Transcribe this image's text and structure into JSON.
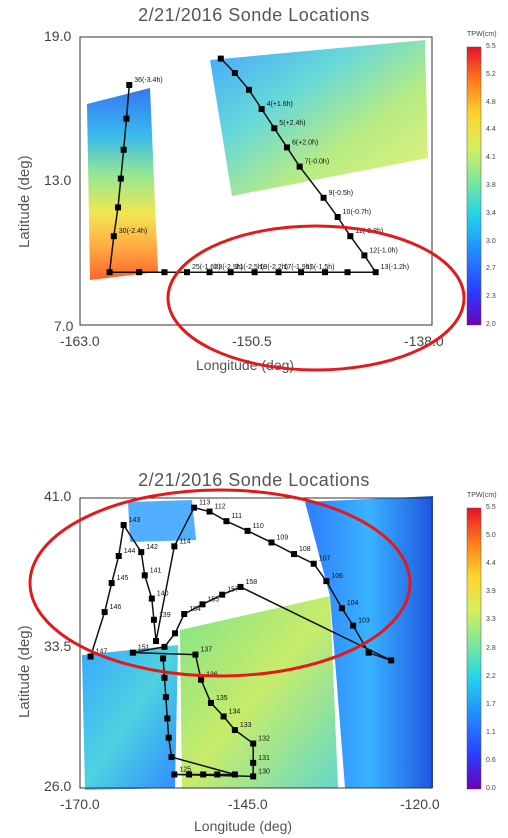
{
  "chart_data": [
    {
      "type": "scatter",
      "title": "2/21/2016 Sonde Locations",
      "xlabel": "Longitude (deg)",
      "ylabel": "Latitude (deg)",
      "xlim": [
        -163.0,
        -138.0
      ],
      "ylim": [
        7.0,
        19.0
      ],
      "xticks": [
        "-163.0",
        "-150.5",
        "-138.0"
      ],
      "yticks": [
        "7.0",
        "13.0",
        "19.0"
      ],
      "colorbar": {
        "title": "TPW(cm)",
        "ticks": [
          "5.5",
          "5.2",
          "4.8",
          "4.4",
          "4.1",
          "3.8",
          "3.4",
          "3.0",
          "2.7",
          "2.3",
          "2.0"
        ]
      },
      "sonde_points": [
        {
          "label": "36(-3.4h)",
          "lon": -159.5,
          "lat": 17.0
        },
        {
          "label": "",
          "lon": -159.7,
          "lat": 15.6
        },
        {
          "label": "",
          "lon": -159.9,
          "lat": 14.3
        },
        {
          "label": "",
          "lon": -160.1,
          "lat": 13.1
        },
        {
          "label": "",
          "lon": -160.3,
          "lat": 11.9
        },
        {
          "label": "30(-2.4h)",
          "lon": -160.6,
          "lat": 10.7
        },
        {
          "label": "",
          "lon": -160.9,
          "lat": 9.2
        },
        {
          "label": "",
          "lon": -158.8,
          "lat": 9.2
        },
        {
          "label": "",
          "lon": -157.0,
          "lat": 9.2
        },
        {
          "label": "25(-1.6h)",
          "lon": -155.4,
          "lat": 9.2
        },
        {
          "label": "23(-2.9h)",
          "lon": -153.8,
          "lat": 9.2
        },
        {
          "label": "21(-2.5h)",
          "lon": -152.3,
          "lat": 9.2
        },
        {
          "label": "19(-2.2h)",
          "lon": -150.6,
          "lat": 9.2
        },
        {
          "label": "17(-1.9h)",
          "lon": -148.9,
          "lat": 9.2
        },
        {
          "label": "15(-1.5h)",
          "lon": -147.3,
          "lat": 9.2
        },
        {
          "label": "",
          "lon": -145.6,
          "lat": 9.2
        },
        {
          "label": "",
          "lon": -144.0,
          "lat": 9.2
        },
        {
          "label": "13(-1.2h)",
          "lon": -142.0,
          "lat": 9.2
        },
        {
          "label": "12(-1.0h)",
          "lon": -142.8,
          "lat": 9.9
        },
        {
          "label": "11(-0.8h)",
          "lon": -143.8,
          "lat": 10.7
        },
        {
          "label": "10(-0.7h)",
          "lon": -144.7,
          "lat": 11.5
        },
        {
          "label": "9(-0.5h)",
          "lon": -145.7,
          "lat": 12.3
        },
        {
          "label": "7(-0.0h)",
          "lon": -147.4,
          "lat": 13.6
        },
        {
          "label": "6(+2.0h)",
          "lon": -148.3,
          "lat": 14.4
        },
        {
          "label": "5(+2.4h)",
          "lon": -149.2,
          "lat": 15.2
        },
        {
          "label": "4(+1.6h)",
          "lon": -150.1,
          "lat": 16.0
        },
        {
          "label": "",
          "lon": -151.0,
          "lat": 16.8
        },
        {
          "label": "",
          "lon": -152.0,
          "lat": 17.5
        },
        {
          "label": "",
          "lon": -153.0,
          "lat": 18.1
        }
      ]
    },
    {
      "type": "scatter",
      "title": "2/21/2016 Sonde Locations",
      "xlabel": "Longitude (deg)",
      "ylabel": "Latitude (deg)",
      "xlim": [
        -170.0,
        -120.0
      ],
      "ylim": [
        26.0,
        41.0
      ],
      "xticks": [
        "-170.0",
        "-145.0",
        "-120.0"
      ],
      "yticks": [
        "26.0",
        "33.5",
        "41.0"
      ],
      "colorbar": {
        "title": "TPW(cm)",
        "ticks": [
          "5.5",
          "5.0",
          "4.4",
          "3.9",
          "3.3",
          "2.8",
          "2.2",
          "1.7",
          "1.1",
          "0.6",
          "0.0"
        ]
      },
      "sonde_points": [
        {
          "label": "147",
          "lon": -168.5,
          "lat": 32.8
        },
        {
          "label": "146",
          "lon": -166.5,
          "lat": 35.1
        },
        {
          "label": "145",
          "lon": -165.5,
          "lat": 36.6
        },
        {
          "label": "144",
          "lon": -164.5,
          "lat": 38.0
        },
        {
          "label": "143",
          "lon": -163.8,
          "lat": 39.6
        },
        {
          "label": "142",
          "lon": -161.3,
          "lat": 38.2
        },
        {
          "label": "141",
          "lon": -160.8,
          "lat": 37.0
        },
        {
          "label": "140",
          "lon": -159.8,
          "lat": 35.8
        },
        {
          "label": "139",
          "lon": -159.5,
          "lat": 34.7
        },
        {
          "label": "",
          "lon": -159.2,
          "lat": 33.6
        },
        {
          "label": "114",
          "lon": -156.6,
          "lat": 38.5
        },
        {
          "label": "113",
          "lon": -153.8,
          "lat": 40.5
        },
        {
          "label": "112",
          "lon": -151.6,
          "lat": 40.3
        },
        {
          "label": "111",
          "lon": -149.2,
          "lat": 39.8
        },
        {
          "label": "110",
          "lon": -146.2,
          "lat": 39.3
        },
        {
          "label": "109",
          "lon": -142.8,
          "lat": 38.7
        },
        {
          "label": "108",
          "lon": -139.6,
          "lat": 38.1
        },
        {
          "label": "107",
          "lon": -136.8,
          "lat": 37.6
        },
        {
          "label": "106",
          "lon": -135.0,
          "lat": 36.7
        },
        {
          "label": "104",
          "lon": -132.8,
          "lat": 35.3
        },
        {
          "label": "103",
          "lon": -131.2,
          "lat": 34.4
        },
        {
          "label": "",
          "lon": -129.0,
          "lat": 33.0
        },
        {
          "label": "",
          "lon": -125.8,
          "lat": 32.6
        },
        {
          "label": "158",
          "lon": -147.2,
          "lat": 36.4
        },
        {
          "label": "157",
          "lon": -149.8,
          "lat": 36.0
        },
        {
          "label": "155",
          "lon": -152.6,
          "lat": 35.5
        },
        {
          "label": "154",
          "lon": -155.2,
          "lat": 35.0
        },
        {
          "label": "",
          "lon": -156.5,
          "lat": 34.0
        },
        {
          "label": "",
          "lon": -158.0,
          "lat": 33.3
        },
        {
          "label": "151",
          "lon": -162.5,
          "lat": 33.0
        },
        {
          "label": "137",
          "lon": -153.6,
          "lat": 32.9
        },
        {
          "label": "136",
          "lon": -152.8,
          "lat": 31.6
        },
        {
          "label": "135",
          "lon": -151.4,
          "lat": 30.4
        },
        {
          "label": "134",
          "lon": -149.6,
          "lat": 29.7
        },
        {
          "label": "133",
          "lon": -148.0,
          "lat": 29.0
        },
        {
          "label": "132",
          "lon": -145.4,
          "lat": 28.3
        },
        {
          "label": "131",
          "lon": -145.4,
          "lat": 27.3
        },
        {
          "label": "130",
          "lon": -145.4,
          "lat": 26.6
        },
        {
          "label": "125",
          "lon": -156.6,
          "lat": 26.7
        },
        {
          "label": "",
          "lon": -154.5,
          "lat": 26.7
        },
        {
          "label": "",
          "lon": -152.5,
          "lat": 26.7
        },
        {
          "label": "",
          "lon": -150.5,
          "lat": 26.7
        },
        {
          "label": "",
          "lon": -148.0,
          "lat": 26.7
        },
        {
          "label": "",
          "lon": -157.0,
          "lat": 27.6
        },
        {
          "label": "",
          "lon": -157.4,
          "lat": 28.6
        },
        {
          "label": "",
          "lon": -157.6,
          "lat": 29.6
        },
        {
          "label": "",
          "lon": -157.8,
          "lat": 30.7
        },
        {
          "label": "",
          "lon": -158.0,
          "lat": 31.7
        },
        {
          "label": "",
          "lon": -158.2,
          "lat": 32.7
        }
      ]
    }
  ]
}
